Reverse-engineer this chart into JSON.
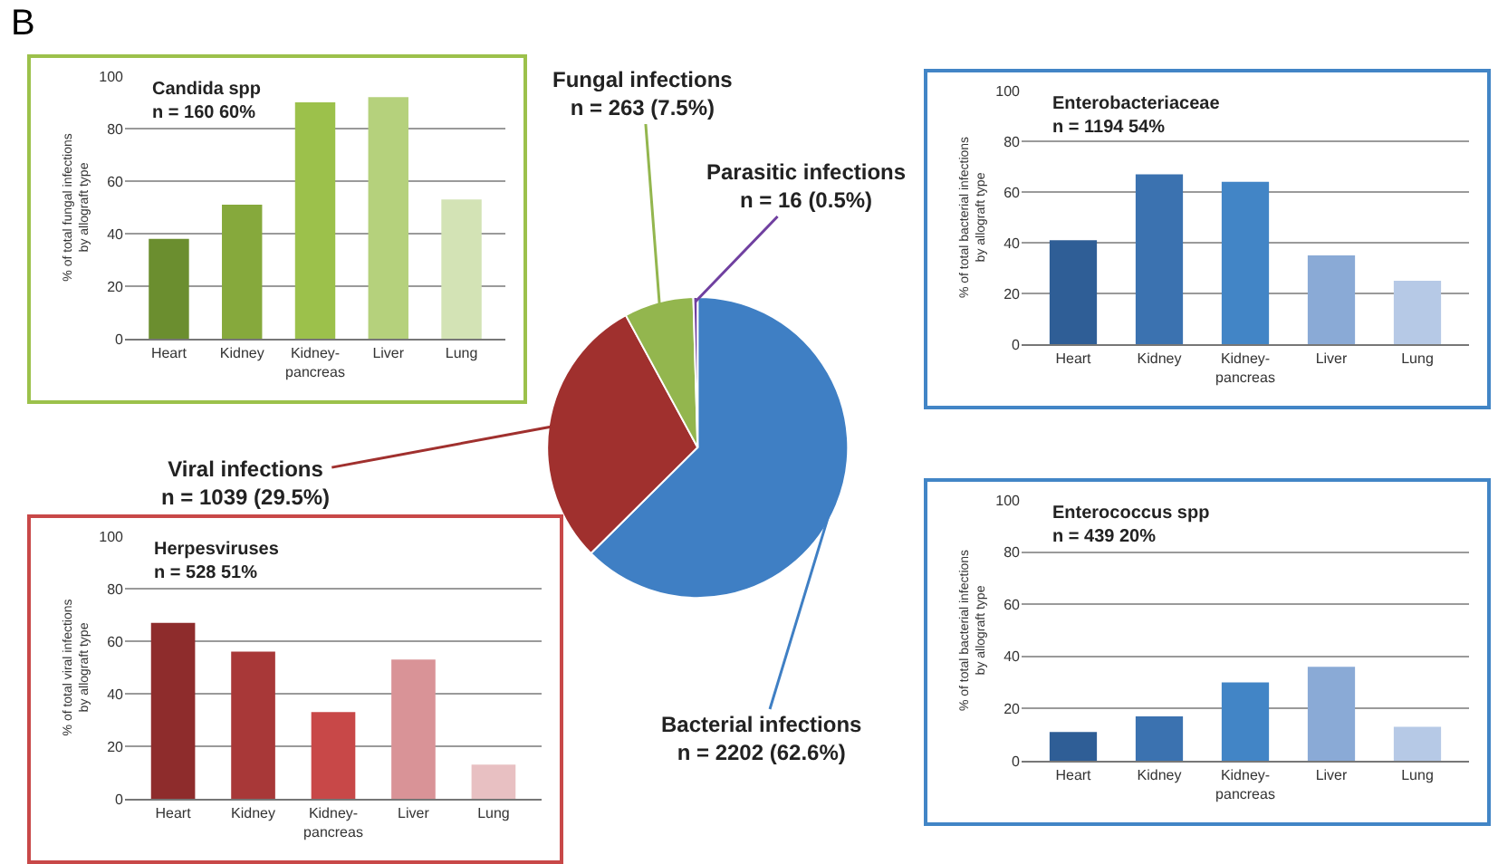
{
  "chart_data": [
    {
      "type": "bar",
      "title": "Candida spp",
      "subtitle": "n = 160 60%",
      "ylabel": "% of total fungal infections\nby allograft type",
      "annotations": [
        "B"
      ],
      "categories": [
        "Heart",
        "Kidney",
        "Kidney-pancreas",
        "Liver",
        "Lung"
      ],
      "values": [
        38,
        51,
        90,
        92,
        53
      ],
      "colors": [
        "#6b8e2f",
        "#86a93c",
        "#9cc14b",
        "#b5d17c",
        "#d3e3b5"
      ],
      "ylim": [
        0,
        100
      ],
      "yticks": [
        0,
        20,
        40,
        60,
        80,
        100
      ],
      "grid": "y",
      "legend": false
    },
    {
      "type": "pie",
      "categories": [
        "Bacterial infections",
        "Viral infections",
        "Fungal infections",
        "Parasitic infections"
      ],
      "values": [
        2202,
        1039,
        263,
        16
      ],
      "value_labels": [
        "n = 2202 (62.6%)",
        "n = 1039 (29.5%)",
        "n = 263 (7.5%)",
        "n = 16 (0.5%)"
      ],
      "colors": [
        "#3f7fc4",
        "#a0302e",
        "#93b64e",
        "#7040a0"
      ],
      "legend": false
    },
    {
      "type": "bar",
      "title": "Enterobacteriaceae",
      "subtitle": "n = 1194 54%",
      "ylabel": "% of total bacterial infections\nby allograft type",
      "categories": [
        "Heart",
        "Kidney",
        "Kidney-pancreas",
        "Liver",
        "Lung"
      ],
      "values": [
        41,
        67,
        64,
        35,
        25
      ],
      "colors": [
        "#2f5e96",
        "#3b72b0",
        "#4285c6",
        "#8aaad6",
        "#b6c9e6"
      ],
      "ylim": [
        0,
        100
      ],
      "yticks": [
        0,
        20,
        40,
        60,
        80,
        100
      ],
      "grid": "y",
      "legend": false
    },
    {
      "type": "bar",
      "title": "Herpesviruses",
      "subtitle": "n = 528 51%",
      "ylabel": "% of total viral infections\nby allograft type",
      "categories": [
        "Heart",
        "Kidney",
        "Kidney-pancreas",
        "Liver",
        "Lung"
      ],
      "values": [
        67,
        56,
        33,
        53,
        13
      ],
      "colors": [
        "#8e2c2c",
        "#a83838",
        "#c84848",
        "#d99397",
        "#e8c0c2"
      ],
      "ylim": [
        0,
        100
      ],
      "yticks": [
        0,
        20,
        40,
        60,
        80,
        100
      ],
      "grid": "y",
      "legend": false
    },
    {
      "type": "bar",
      "title": "Enterococcus spp",
      "subtitle": "n = 439 20%",
      "ylabel": "% of total bacterial infections\nby allograft type",
      "categories": [
        "Heart",
        "Kidney",
        "Kidney-pancreas",
        "Liver",
        "Lung"
      ],
      "values": [
        11,
        17,
        30,
        36,
        13
      ],
      "colors": [
        "#2f5e96",
        "#3b72b0",
        "#4285c6",
        "#8aaad6",
        "#b6c9e6"
      ],
      "ylim": [
        0,
        100
      ],
      "yticks": [
        0,
        20,
        40,
        60,
        80,
        100
      ],
      "grid": "y",
      "legend": false
    }
  ]
}
